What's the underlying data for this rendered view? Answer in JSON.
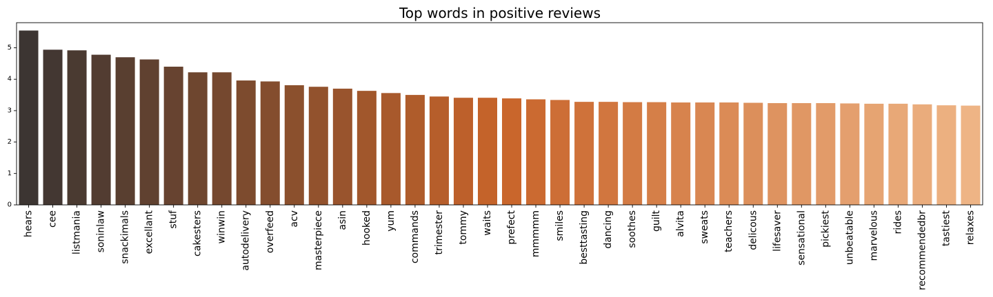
{
  "chart_data": {
    "type": "bar",
    "title": "Top words in positive reviews",
    "xlabel": "",
    "ylabel": "",
    "ylim": [
      0,
      5.8
    ],
    "yticks": [
      0,
      1,
      2,
      3,
      4,
      5
    ],
    "grid": false,
    "legend": "none",
    "categories": [
      "hears",
      "cee",
      "listmania",
      "soninlaw",
      "snackimals",
      "excellant",
      "stuf",
      "cakesters",
      "winwin",
      "autodelivery",
      "overfeed",
      "acv",
      "masterpiece",
      "asin",
      "hooked",
      "yum",
      "commands",
      "trimester",
      "tommy",
      "waits",
      "prefect",
      "mmmmm",
      "smiles",
      "besttasting",
      "dancing",
      "soothes",
      "guilt",
      "alvita",
      "sweats",
      "teachers",
      "delicous",
      "lifesaver",
      "sensational",
      "pickiest",
      "unbeatable",
      "marvelous",
      "rides",
      "recommendedbr",
      "tastiest",
      "relaxes"
    ],
    "values": [
      5.55,
      4.94,
      4.92,
      4.78,
      4.7,
      4.63,
      4.4,
      4.22,
      4.22,
      3.96,
      3.93,
      3.81,
      3.76,
      3.7,
      3.63,
      3.56,
      3.5,
      3.45,
      3.41,
      3.41,
      3.39,
      3.36,
      3.34,
      3.28,
      3.28,
      3.27,
      3.27,
      3.26,
      3.26,
      3.26,
      3.25,
      3.24,
      3.24,
      3.24,
      3.23,
      3.22,
      3.22,
      3.2,
      3.17,
      3.16
    ],
    "colors": {
      "palette_start": "#3c3532",
      "palette_mid": "#c8642a",
      "palette_end": "#eeb485"
    }
  }
}
